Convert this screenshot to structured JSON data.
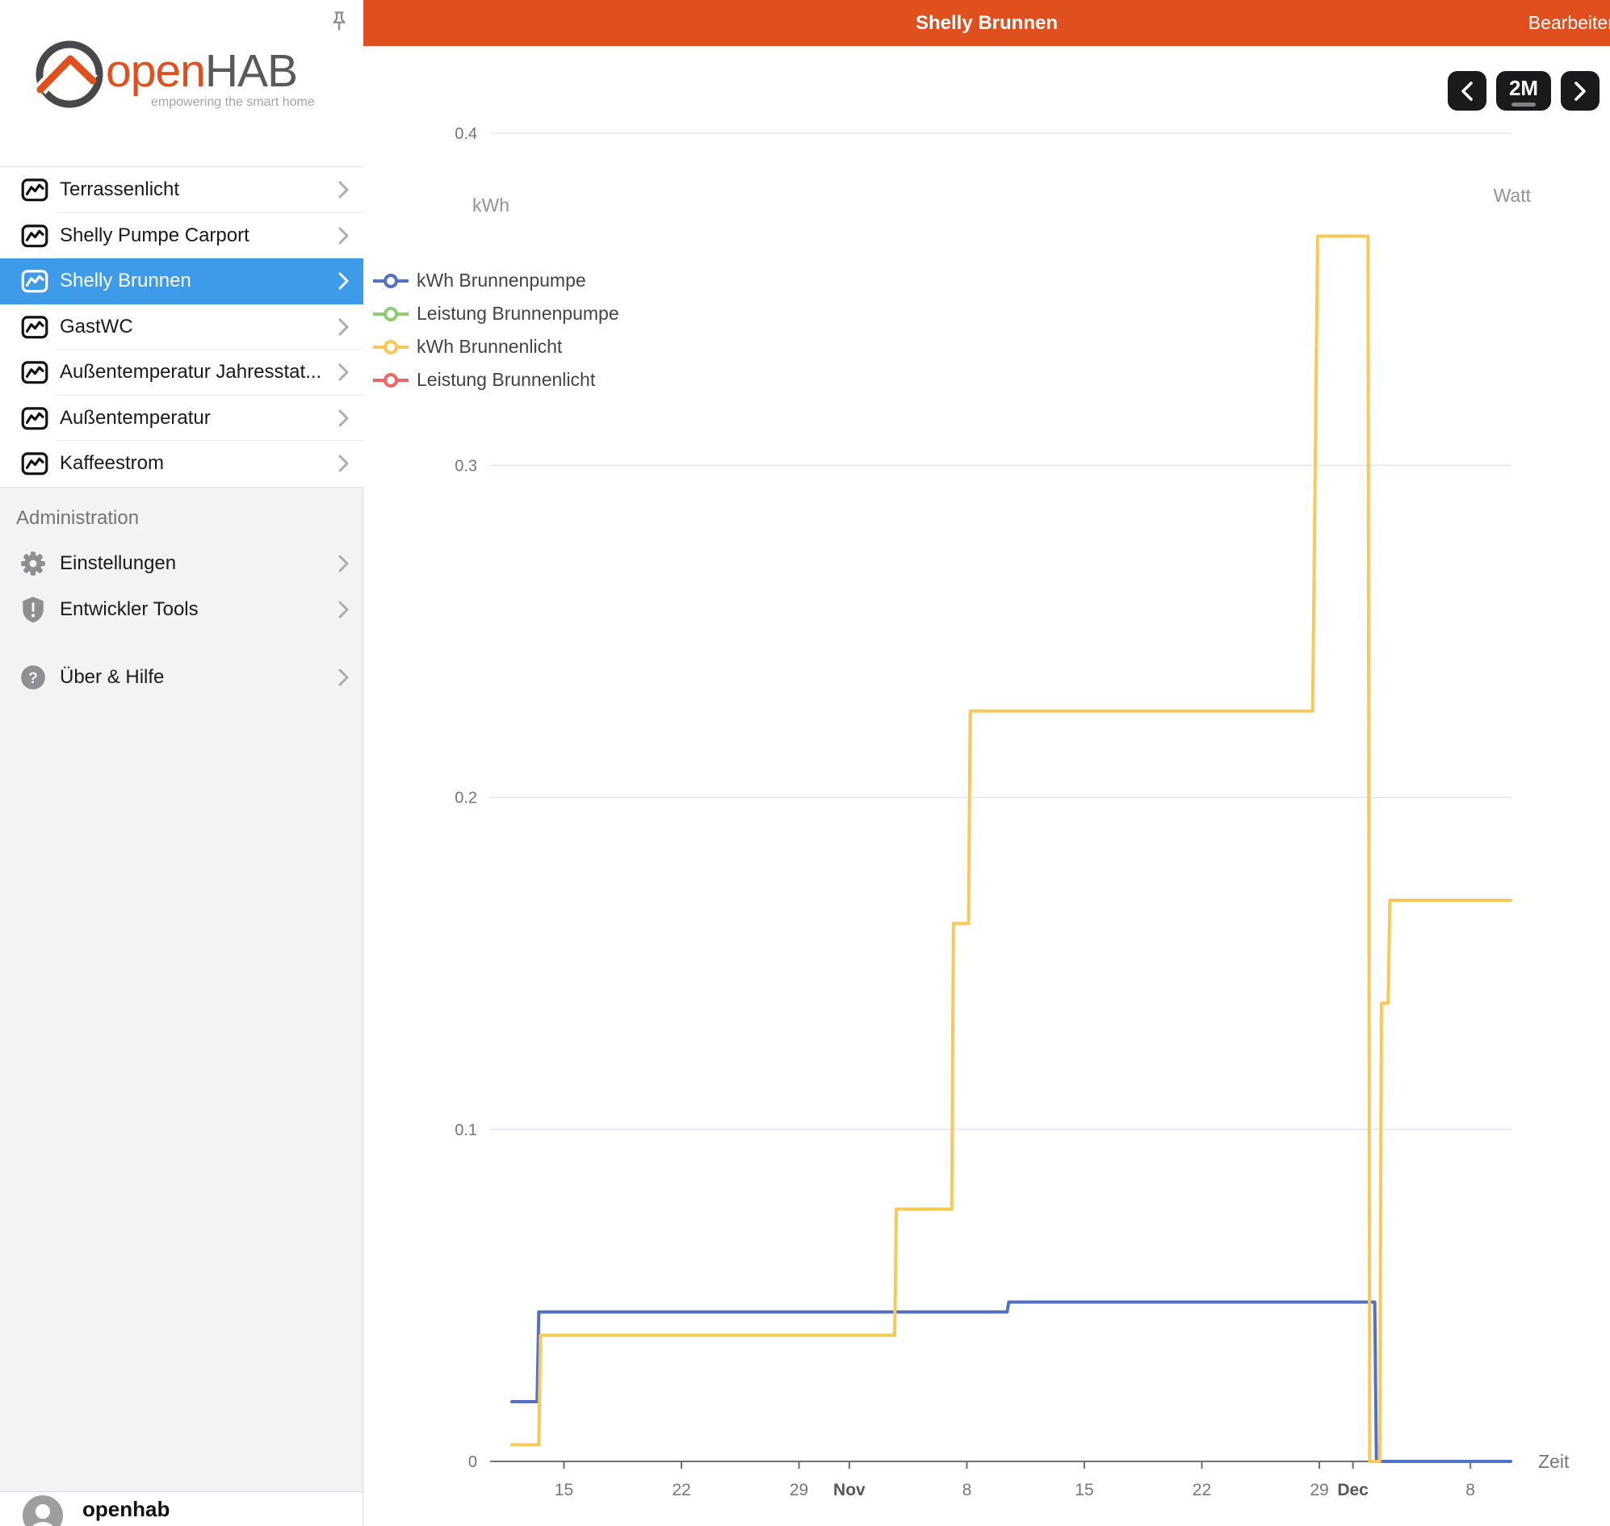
{
  "brand": {
    "name_open": "open",
    "name_hab": "HAB",
    "tagline": "empowering the smart home"
  },
  "header": {
    "title": "Shelly Brunnen",
    "edit_label": "Bearbeiten",
    "color": "#e0501e"
  },
  "toolbar": {
    "range_label": "2M"
  },
  "sidebar": {
    "selected_color": "#3d9bea",
    "items": [
      {
        "label": "Terrassenlicht",
        "selected": false
      },
      {
        "label": "Shelly Pumpe Carport",
        "selected": false
      },
      {
        "label": "Shelly Brunnen",
        "selected": true
      },
      {
        "label": "GastWC",
        "selected": false
      },
      {
        "label": "Außentemperatur Jahresstat...",
        "selected": false
      },
      {
        "label": "Außentemperatur",
        "selected": false
      },
      {
        "label": "Kaffeestrom",
        "selected": false
      }
    ],
    "admin_header": "Administration",
    "admin_items": [
      {
        "label": "Einstellungen",
        "icon": "gear-icon"
      },
      {
        "label": "Entwickler Tools",
        "icon": "shield-exclamation-icon"
      }
    ],
    "help_item": {
      "label": "Über & Hilfe",
      "icon": "question-circle-icon"
    },
    "user": "openhab"
  },
  "chart_data": {
    "type": "line",
    "subtype": "step",
    "time_window": "2M",
    "y_axis": {
      "name": "kWh",
      "min": 0,
      "max": 0.4,
      "ticks": [
        0,
        0.1,
        0.2,
        0.3,
        0.4
      ]
    },
    "y_axis_right": {
      "name": "Watt",
      "ticks_visible": false
    },
    "x_axis": {
      "name": "Zeit",
      "day_range": [
        9.6,
        70.4
      ],
      "ticks": [
        {
          "d": 14,
          "label": "15",
          "bold": false
        },
        {
          "d": 21,
          "label": "22",
          "bold": false
        },
        {
          "d": 28,
          "label": "29",
          "bold": false
        },
        {
          "d": 31,
          "label": "Nov",
          "bold": true
        },
        {
          "d": 38,
          "label": "8",
          "bold": false
        },
        {
          "d": 45,
          "label": "15",
          "bold": false
        },
        {
          "d": 52,
          "label": "22",
          "bold": false
        },
        {
          "d": 59,
          "label": "29",
          "bold": false
        },
        {
          "d": 61,
          "label": "Dec",
          "bold": true
        },
        {
          "d": 68,
          "label": "8",
          "bold": false
        }
      ]
    },
    "series": [
      {
        "name": "kWh Brunnenpumpe",
        "color": "#5470c6",
        "visible": true,
        "points": [
          [
            10.9,
            0.018
          ],
          [
            12.4,
            0.018
          ],
          [
            12.5,
            0.045
          ],
          [
            40.4,
            0.045
          ],
          [
            40.5,
            0.048
          ],
          [
            62.3,
            0.048
          ],
          [
            62.4,
            0.0
          ],
          [
            70.4,
            0.0
          ]
        ]
      },
      {
        "name": "Leistung Brunnenpumpe",
        "color": "#91cc75",
        "visible": false,
        "points": []
      },
      {
        "name": "kWh Brunnenlicht",
        "color": "#fac858",
        "visible": true,
        "points": [
          [
            10.9,
            0.005
          ],
          [
            12.5,
            0.005
          ],
          [
            12.6,
            0.038
          ],
          [
            33.7,
            0.038
          ],
          [
            33.8,
            0.076
          ],
          [
            37.1,
            0.076
          ],
          [
            37.2,
            0.162
          ],
          [
            38.1,
            0.162
          ],
          [
            38.2,
            0.226
          ],
          [
            58.6,
            0.226
          ],
          [
            58.9,
            0.369
          ],
          [
            61.9,
            0.369
          ],
          [
            62.0,
            0.0
          ],
          [
            62.6,
            0.0
          ],
          [
            62.7,
            0.138
          ],
          [
            63.1,
            0.138
          ],
          [
            63.2,
            0.169
          ],
          [
            70.4,
            0.169
          ]
        ]
      },
      {
        "name": "Leistung Brunnenlicht",
        "color": "#ee6666",
        "visible": false,
        "points": []
      }
    ]
  }
}
